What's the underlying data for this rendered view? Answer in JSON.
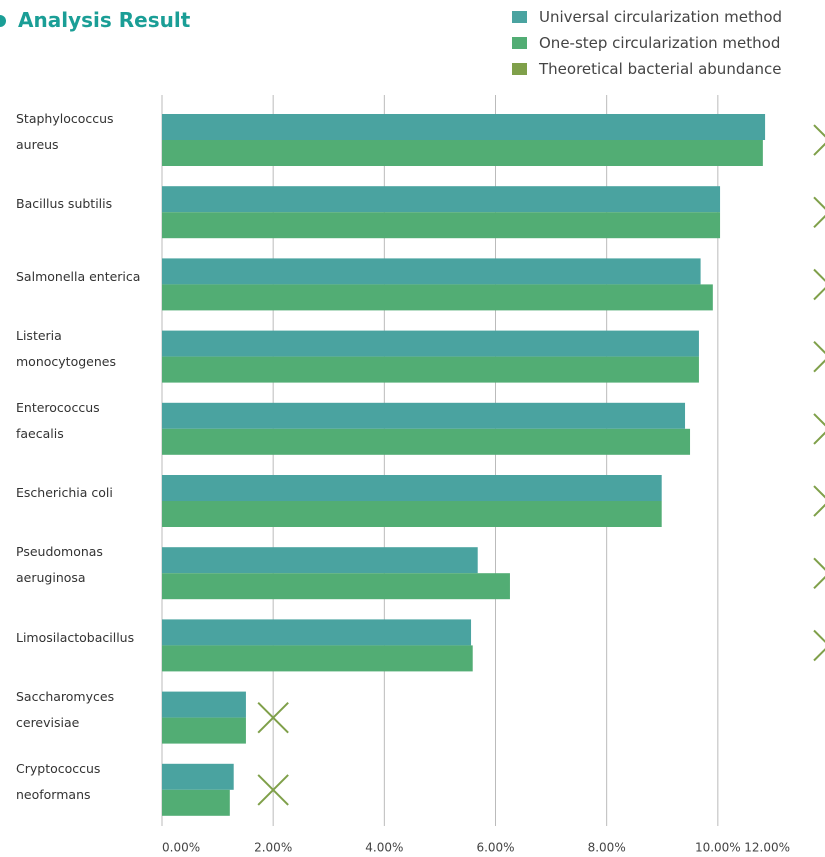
{
  "chart_data": {
    "type": "bar",
    "orientation": "horizontal",
    "title": "Analysis Result",
    "categories": [
      "Staphylococcus aureus",
      "Bacillus subtilis",
      "Salmonella enterica",
      "Listeria monocytogenes",
      "Enterococcus faecalis",
      "Escherichia coli",
      "Pseudomonas aeruginosa",
      "Limosilactobacillus",
      "Saccharomyces cerevisiae",
      "Cryptococcus neoformans"
    ],
    "series": [
      {
        "name": "Universal circularization method",
        "color": "#4aa3a0",
        "values": [
          10.85,
          10.04,
          9.69,
          9.66,
          9.41,
          8.99,
          5.68,
          5.56,
          1.51,
          1.29
        ]
      },
      {
        "name": "One-step circularization method",
        "color": "#52ad74",
        "values": [
          10.81,
          10.04,
          9.91,
          9.66,
          9.5,
          8.99,
          6.26,
          5.59,
          1.51,
          1.22
        ]
      },
      {
        "name": "Theoretical bacterial abundance",
        "color": "#7fa04a",
        "marker": "x",
        "values": [
          12,
          12,
          12,
          12,
          12,
          12,
          12,
          12,
          2,
          2
        ]
      }
    ],
    "xlim": [
      0,
      12
    ],
    "xticks": [
      {
        "value": 0,
        "label": "0.00%"
      },
      {
        "value": 2,
        "label": "2.00%"
      },
      {
        "value": 4,
        "label": "4.00%"
      },
      {
        "value": 6,
        "label": "6.00%"
      },
      {
        "value": 8,
        "label": "8.00%"
      },
      {
        "value": 10,
        "label": "10.00%"
      },
      {
        "value": 12,
        "label": "12.00%"
      }
    ],
    "grid": true,
    "legend": "top-right"
  }
}
